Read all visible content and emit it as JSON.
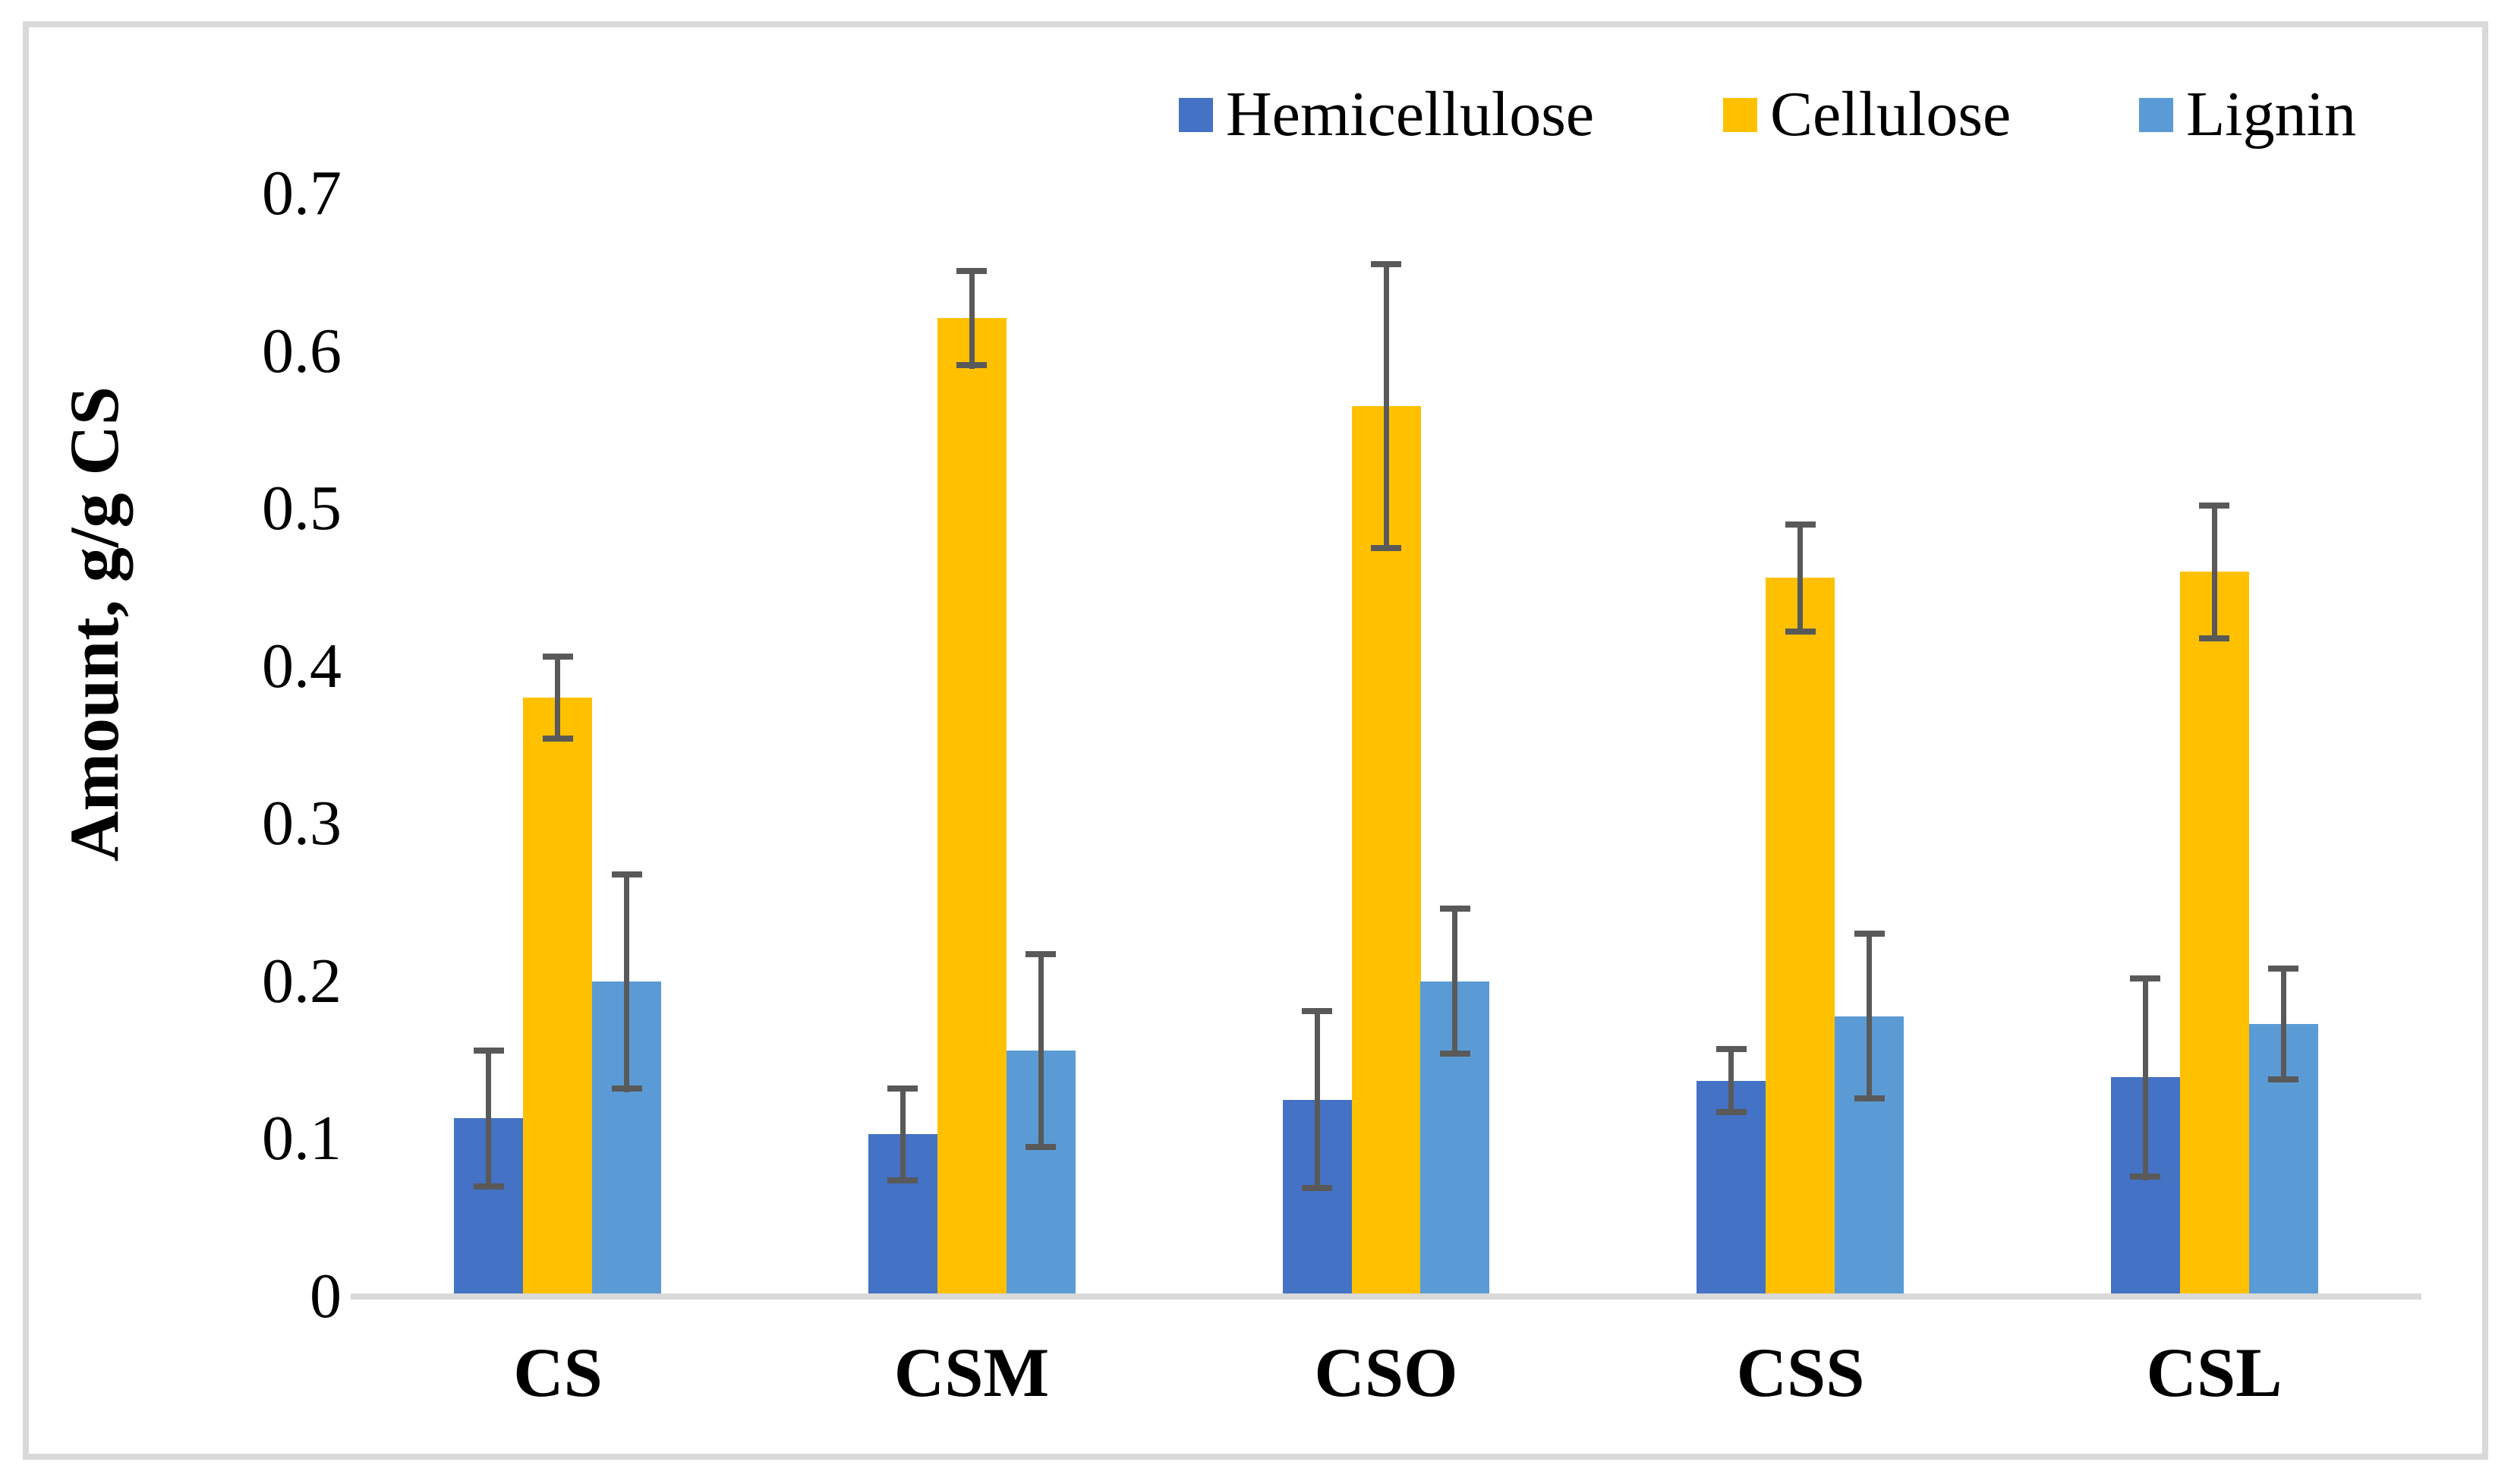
{
  "chart_data": {
    "type": "bar",
    "title": "",
    "xlabel": "",
    "ylabel": "Amount, g/g CS",
    "categories": [
      "CS",
      "CSM",
      "CSO",
      "CSS",
      "CSL"
    ],
    "series": [
      {
        "name": "Hemicellulose",
        "color": "#4472C4",
        "values": [
          0.113,
          0.103,
          0.125,
          0.137,
          0.139
        ],
        "errors": [
          0.045,
          0.031,
          0.058,
          0.022,
          0.065
        ]
      },
      {
        "name": "Cellulose",
        "color": "#FFC000",
        "values": [
          0.38,
          0.621,
          0.565,
          0.456,
          0.46
        ],
        "errors": [
          0.028,
          0.032,
          0.092,
          0.036,
          0.044
        ]
      },
      {
        "name": "Lignin",
        "color": "#5B9BD5",
        "values": [
          0.2,
          0.156,
          0.2,
          0.178,
          0.173
        ],
        "errors": [
          0.07,
          0.063,
          0.048,
          0.054,
          0.037
        ]
      }
    ],
    "ylim": [
      0,
      0.7
    ],
    "ytick_step": 0.1,
    "ytick_labels": [
      "0",
      "0.1",
      "0.2",
      "0.3",
      "0.4",
      "0.5",
      "0.6",
      "0.7"
    ],
    "grid": false,
    "legend_position": "top",
    "error_bars": true,
    "error_bar_color": "#595959",
    "axis_line_color": "#D9D9D9",
    "frame_color": "#D9D9D9",
    "gap_ratio_note": "bars fill middle 3/6 of each category slot"
  }
}
